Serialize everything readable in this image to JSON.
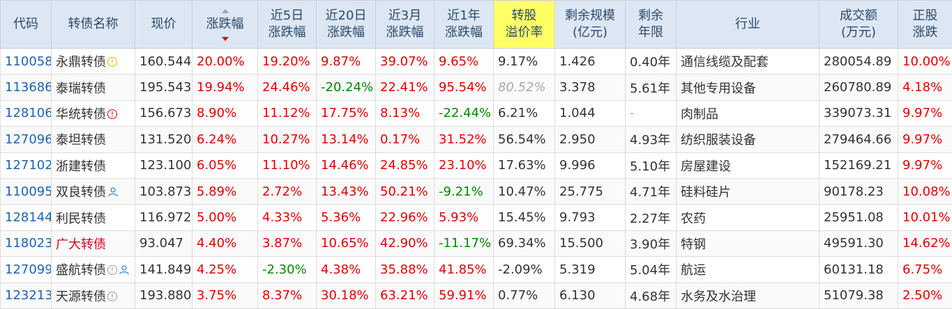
{
  "headers": [
    {
      "l1": "代码",
      "l2": ""
    },
    {
      "l1": "转债名称",
      "l2": ""
    },
    {
      "l1": "现价",
      "l2": ""
    },
    {
      "l1": "涨跌幅",
      "l2": ""
    },
    {
      "l1": "近5日",
      "l2": "涨跌幅"
    },
    {
      "l1": "近20日",
      "l2": "涨跌幅"
    },
    {
      "l1": "近3月",
      "l2": "涨跌幅"
    },
    {
      "l1": "近1年",
      "l2": "涨跌幅"
    },
    {
      "l1": "转股",
      "l2": "溢价率"
    },
    {
      "l1": "剩余规模",
      "l2": "(亿元)"
    },
    {
      "l1": "剩余",
      "l2": "年限"
    },
    {
      "l1": "行业",
      "l2": ""
    },
    {
      "l1": "成交额",
      "l2": "(万元)"
    },
    {
      "l1": "正股",
      "l2": "涨跌"
    }
  ],
  "sort_icon": "sort-desc-icon",
  "highlight_color": "#ffff66",
  "rows": [
    {
      "code": "110058",
      "name": "永鼎转债",
      "badge": "!",
      "badge_kind": "yellow",
      "icon": "",
      "price": "160.544",
      "chg": "20.00%",
      "chg5": "19.20%",
      "chg20": "9.87%",
      "chg3m": "39.07%",
      "chg1y": "9.65%",
      "premium": "9.17%",
      "scale": "1.426",
      "years": "0.40年",
      "industry": "通信线缆及配套",
      "volume": "280054.89",
      "stock": "10.00%"
    },
    {
      "code": "113686",
      "name": "泰瑞转债",
      "badge": "",
      "badge_kind": "",
      "icon": "",
      "price": "195.543",
      "chg": "19.94%",
      "chg5": "24.46%",
      "chg20": "-20.24%",
      "chg3m": "22.41%",
      "chg1y": "95.54%",
      "premium": "80.52%",
      "scale": "3.378",
      "years": "5.61年",
      "industry": "其他专用设备",
      "volume": "260780.89",
      "stock": "4.18%"
    },
    {
      "code": "128106",
      "name": "华统转债",
      "badge": "!",
      "badge_kind": "red",
      "icon": "",
      "price": "156.673",
      "chg": "8.90%",
      "chg5": "11.12%",
      "chg20": "17.75%",
      "chg3m": "8.13%",
      "chg1y": "-22.44%",
      "premium": "6.21%",
      "scale": "1.044",
      "years": "-",
      "industry": "肉制品",
      "volume": "339073.31",
      "stock": "9.97%"
    },
    {
      "code": "127096",
      "name": "泰坦转债",
      "badge": "",
      "badge_kind": "",
      "icon": "",
      "price": "131.520",
      "chg": "6.24%",
      "chg5": "10.27%",
      "chg20": "13.14%",
      "chg3m": "0.17%",
      "chg1y": "31.52%",
      "premium": "56.54%",
      "scale": "2.950",
      "years": "4.93年",
      "industry": "纺织服装设备",
      "volume": "279464.66",
      "stock": "9.97%"
    },
    {
      "code": "127102",
      "name": "浙建转债",
      "badge": "",
      "badge_kind": "",
      "icon": "",
      "price": "123.100",
      "chg": "6.05%",
      "chg5": "11.10%",
      "chg20": "14.46%",
      "chg3m": "24.85%",
      "chg1y": "23.10%",
      "premium": "17.63%",
      "scale": "9.996",
      "years": "5.10年",
      "industry": "房屋建设",
      "volume": "152169.21",
      "stock": "9.97%"
    },
    {
      "code": "110095",
      "name": "双良转债",
      "badge": "",
      "badge_kind": "",
      "icon": "user",
      "price": "103.873",
      "chg": "5.89%",
      "chg5": "2.72%",
      "chg20": "13.43%",
      "chg3m": "50.21%",
      "chg1y": "-9.21%",
      "premium": "10.47%",
      "scale": "25.775",
      "years": "4.71年",
      "industry": "硅料硅片",
      "volume": "90178.23",
      "stock": "10.08%"
    },
    {
      "code": "128144",
      "name": "利民转债",
      "badge": "",
      "badge_kind": "",
      "icon": "",
      "price": "116.972",
      "chg": "5.00%",
      "chg5": "4.33%",
      "chg20": "5.36%",
      "chg3m": "22.96%",
      "chg1y": "5.93%",
      "premium": "15.45%",
      "scale": "9.793",
      "years": "2.27年",
      "industry": "农药",
      "volume": "25951.08",
      "stock": "10.01%"
    },
    {
      "code": "118023",
      "name": "广大转债",
      "badge": "",
      "badge_kind": "",
      "icon": "",
      "price": "93.047",
      "chg": "4.40%",
      "chg5": "3.87%",
      "chg20": "10.65%",
      "chg3m": "42.90%",
      "chg1y": "-11.17%",
      "premium": "69.34%",
      "scale": "15.500",
      "years": "3.90年",
      "industry": "特钢",
      "volume": "49591.30",
      "stock": "14.62%"
    },
    {
      "code": "127099",
      "name": "盛航转债",
      "badge": "!",
      "badge_kind": "gray",
      "icon": "user",
      "price": "141.849",
      "chg": "4.25%",
      "chg5": "-2.30%",
      "chg20": "4.38%",
      "chg3m": "35.88%",
      "chg1y": "41.85%",
      "premium": "-2.09%",
      "scale": "5.319",
      "years": "5.04年",
      "industry": "航运",
      "volume": "60131.18",
      "stock": "6.75%"
    },
    {
      "code": "123213",
      "name": "天源转债",
      "badge": "!",
      "badge_kind": "gray",
      "icon": "",
      "price": "193.880",
      "chg": "3.75%",
      "chg5": "8.37%",
      "chg20": "30.18%",
      "chg3m": "63.21%",
      "chg1y": "59.91%",
      "premium": "0.77%",
      "scale": "6.130",
      "years": "4.68年",
      "industry": "水务及水治理",
      "volume": "51079.38",
      "stock": "2.50%"
    }
  ]
}
